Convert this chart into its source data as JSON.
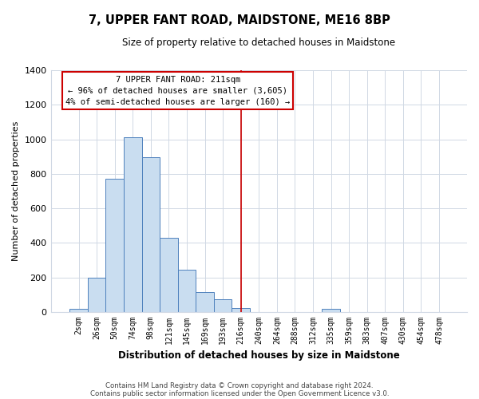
{
  "title": "7, UPPER FANT ROAD, MAIDSTONE, ME16 8BP",
  "subtitle": "Size of property relative to detached houses in Maidstone",
  "xlabel": "Distribution of detached houses by size in Maidstone",
  "ylabel": "Number of detached properties",
  "bar_labels": [
    "2sqm",
    "26sqm",
    "50sqm",
    "74sqm",
    "98sqm",
    "121sqm",
    "145sqm",
    "169sqm",
    "193sqm",
    "216sqm",
    "240sqm",
    "264sqm",
    "288sqm",
    "312sqm",
    "335sqm",
    "359sqm",
    "383sqm",
    "407sqm",
    "430sqm",
    "454sqm",
    "478sqm"
  ],
  "bar_values": [
    20,
    200,
    770,
    1010,
    895,
    430,
    245,
    115,
    75,
    25,
    0,
    0,
    0,
    0,
    20,
    0,
    0,
    0,
    0,
    0,
    0
  ],
  "bar_color": "#c9ddf0",
  "bar_edge_color": "#4f81bd",
  "vline_color": "#cc0000",
  "ylim": [
    0,
    1400
  ],
  "yticks": [
    0,
    200,
    400,
    600,
    800,
    1000,
    1200,
    1400
  ],
  "annotation_title": "7 UPPER FANT ROAD: 211sqm",
  "annotation_line1": "← 96% of detached houses are smaller (3,605)",
  "annotation_line2": "4% of semi-detached houses are larger (160) →",
  "annotation_box_color": "#ffffff",
  "annotation_box_edge": "#cc0000",
  "footer1": "Contains HM Land Registry data © Crown copyright and database right 2024.",
  "footer2": "Contains public sector information licensed under the Open Government Licence v3.0.",
  "background_color": "#ffffff",
  "grid_color": "#d0d8e4"
}
